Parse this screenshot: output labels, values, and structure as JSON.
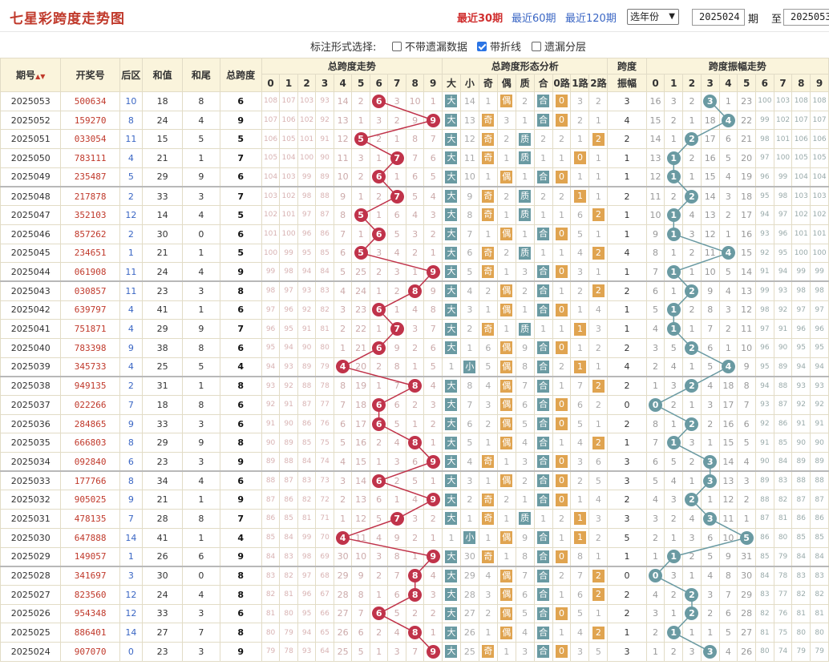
{
  "title": "七星彩跨度走势图",
  "periods": {
    "p30": "最近30期",
    "p60": "最近60期",
    "p120": "最近120期"
  },
  "year_select": "选年份",
  "from_value": "2025024",
  "qi_label": "期",
  "zhi_label": "至",
  "to_value": "2025053",
  "options": {
    "label": "标注形式选择:",
    "items": [
      {
        "label": "不带遗漏数据",
        "checked": false
      },
      {
        "label": "带折线",
        "checked": true
      },
      {
        "label": "遗漏分层",
        "checked": false
      }
    ]
  },
  "headers": {
    "qihao": "期号",
    "kaijiang": "开奖号",
    "houqu": "后区",
    "hezhi": "和值",
    "hewei": "和尾",
    "zongkuadu": "总跨度",
    "trend_group": "总跨度走势",
    "form_group": "总跨度形态分析",
    "amp_group_l1": "跨度",
    "amp_group_l2": "振幅",
    "amptrend_group": "跨度振幅走势",
    "digits": [
      "0",
      "1",
      "2",
      "3",
      "4",
      "5",
      "6",
      "7",
      "8",
      "9"
    ],
    "forms": [
      "大",
      "小",
      "奇",
      "偶",
      "质",
      "合",
      "0路",
      "1路",
      "2路"
    ]
  },
  "rows": [
    {
      "qi": "2025053",
      "num": "500634",
      "hq": "10",
      "hz": "18",
      "hw": "8",
      "kd": "6",
      "tr": [
        "108",
        "107",
        "103",
        "93",
        "14",
        "2",
        "",
        "3",
        "10",
        "1"
      ],
      "fm": [
        "大",
        "14",
        "1",
        "偶",
        "2",
        "合",
        "0",
        "3",
        "2"
      ],
      "zf": "3",
      "at": [
        "16",
        "3",
        "2",
        "",
        "1",
        "23",
        "100",
        "103",
        "108",
        "108"
      ]
    },
    {
      "qi": "2025052",
      "num": "159270",
      "hq": "8",
      "hz": "24",
      "hw": "4",
      "kd": "9",
      "tr": [
        "107",
        "106",
        "102",
        "92",
        "13",
        "1",
        "3",
        "2",
        "9",
        ""
      ],
      "fm": [
        "大",
        "13",
        "奇",
        "3",
        "1",
        "合",
        "0",
        "2",
        "1"
      ],
      "zf": "4",
      "at": [
        "15",
        "2",
        "1",
        "18",
        "",
        "22",
        "99",
        "102",
        "107",
        "107"
      ]
    },
    {
      "qi": "2025051",
      "num": "033054",
      "hq": "11",
      "hz": "15",
      "hw": "5",
      "kd": "5",
      "tr": [
        "106",
        "105",
        "101",
        "91",
        "12",
        "",
        "2",
        "1",
        "8",
        "7"
      ],
      "fm": [
        "大",
        "12",
        "奇",
        "2",
        "质",
        "2",
        "2",
        "1",
        "2"
      ],
      "zf": "2",
      "at": [
        "14",
        "1",
        "",
        "17",
        "6",
        "21",
        "98",
        "101",
        "106",
        "106"
      ]
    },
    {
      "qi": "2025050",
      "num": "783111",
      "hq": "4",
      "hz": "21",
      "hw": "1",
      "kd": "7",
      "tr": [
        "105",
        "104",
        "100",
        "90",
        "11",
        "3",
        "1",
        "",
        "7",
        "6"
      ],
      "fm": [
        "大",
        "11",
        "奇",
        "1",
        "质",
        "1",
        "1",
        "0",
        "1"
      ],
      "zf": "1",
      "at": [
        "13",
        "",
        "2",
        "16",
        "5",
        "20",
        "97",
        "100",
        "105",
        "105"
      ]
    },
    {
      "qi": "2025049",
      "num": "235487",
      "hq": "5",
      "hz": "29",
      "hw": "9",
      "kd": "6",
      "tr": [
        "104",
        "103",
        "99",
        "89",
        "10",
        "2",
        "",
        "1",
        "6",
        "5"
      ],
      "fm": [
        "大",
        "10",
        "1",
        "偶",
        "1",
        "合",
        "0",
        "1",
        "1"
      ],
      "zf": "1",
      "at": [
        "12",
        "",
        "1",
        "15",
        "4",
        "19",
        "96",
        "99",
        "104",
        "104"
      ]
    },
    {
      "qi": "2025048",
      "num": "217878",
      "hq": "2",
      "hz": "33",
      "hw": "3",
      "kd": "7",
      "tr": [
        "103",
        "102",
        "98",
        "88",
        "9",
        "1",
        "2",
        "",
        "5",
        "4"
      ],
      "fm": [
        "大",
        "9",
        "奇",
        "2",
        "质",
        "2",
        "2",
        "1",
        "1"
      ],
      "zf": "2",
      "at": [
        "11",
        "2",
        "",
        "14",
        "3",
        "18",
        "95",
        "98",
        "103",
        "103"
      ]
    },
    {
      "qi": "2025047",
      "num": "352103",
      "hq": "12",
      "hz": "14",
      "hw": "4",
      "kd": "5",
      "tr": [
        "102",
        "101",
        "97",
        "87",
        "8",
        "",
        "1",
        "6",
        "4",
        "3"
      ],
      "fm": [
        "大",
        "8",
        "奇",
        "1",
        "质",
        "1",
        "1",
        "6",
        "2"
      ],
      "zf": "1",
      "at": [
        "10",
        "",
        "4",
        "13",
        "2",
        "17",
        "94",
        "97",
        "102",
        "102"
      ]
    },
    {
      "qi": "2025046",
      "num": "857262",
      "hq": "2",
      "hz": "30",
      "hw": "0",
      "kd": "6",
      "tr": [
        "101",
        "100",
        "96",
        "86",
        "7",
        "1",
        "",
        "5",
        "3",
        "2"
      ],
      "fm": [
        "大",
        "7",
        "1",
        "偶",
        "1",
        "合",
        "0",
        "5",
        "1"
      ],
      "zf": "1",
      "at": [
        "9",
        "",
        "3",
        "12",
        "1",
        "16",
        "93",
        "96",
        "101",
        "101"
      ]
    },
    {
      "qi": "2025045",
      "num": "234651",
      "hq": "1",
      "hz": "21",
      "hw": "1",
      "kd": "5",
      "tr": [
        "100",
        "99",
        "95",
        "85",
        "6",
        "",
        "3",
        "4",
        "2",
        "1"
      ],
      "fm": [
        "大",
        "6",
        "奇",
        "2",
        "质",
        "1",
        "1",
        "4",
        "2"
      ],
      "zf": "4",
      "at": [
        "8",
        "1",
        "2",
        "11",
        "",
        "15",
        "92",
        "95",
        "100",
        "100"
      ]
    },
    {
      "qi": "2025044",
      "num": "061908",
      "hq": "11",
      "hz": "24",
      "hw": "4",
      "kd": "9",
      "tr": [
        "99",
        "98",
        "94",
        "84",
        "5",
        "25",
        "2",
        "3",
        "1",
        ""
      ],
      "fm": [
        "大",
        "5",
        "奇",
        "1",
        "3",
        "合",
        "0",
        "3",
        "1"
      ],
      "zf": "1",
      "at": [
        "7",
        "",
        "1",
        "10",
        "5",
        "14",
        "91",
        "94",
        "99",
        "99"
      ]
    },
    {
      "qi": "2025043",
      "num": "030857",
      "hq": "11",
      "hz": "23",
      "hw": "3",
      "kd": "8",
      "tr": [
        "98",
        "97",
        "93",
        "83",
        "4",
        "24",
        "1",
        "2",
        "",
        "9"
      ],
      "fm": [
        "大",
        "4",
        "2",
        "偶",
        "2",
        "合",
        "1",
        "2",
        "2"
      ],
      "zf": "2",
      "at": [
        "6",
        "1",
        "",
        "9",
        "4",
        "13",
        "99",
        "93",
        "98",
        "98"
      ]
    },
    {
      "qi": "2025042",
      "num": "639797",
      "hq": "4",
      "hz": "41",
      "hw": "1",
      "kd": "6",
      "tr": [
        "97",
        "96",
        "92",
        "82",
        "3",
        "23",
        "",
        "1",
        "4",
        "8"
      ],
      "fm": [
        "大",
        "3",
        "1",
        "偶",
        "1",
        "合",
        "0",
        "1",
        "4"
      ],
      "zf": "1",
      "at": [
        "5",
        "",
        "2",
        "8",
        "3",
        "12",
        "98",
        "92",
        "97",
        "97"
      ]
    },
    {
      "qi": "2025041",
      "num": "751871",
      "hq": "4",
      "hz": "29",
      "hw": "9",
      "kd": "7",
      "tr": [
        "96",
        "95",
        "91",
        "81",
        "2",
        "22",
        "1",
        "",
        "3",
        "7"
      ],
      "fm": [
        "大",
        "2",
        "奇",
        "1",
        "质",
        "1",
        "1",
        "1",
        "3"
      ],
      "zf": "1",
      "at": [
        "4",
        "",
        "1",
        "7",
        "2",
        "11",
        "97",
        "91",
        "96",
        "96"
      ]
    },
    {
      "qi": "2025040",
      "num": "783398",
      "hq": "9",
      "hz": "38",
      "hw": "8",
      "kd": "6",
      "tr": [
        "95",
        "94",
        "90",
        "80",
        "1",
        "21",
        "",
        "9",
        "2",
        "6"
      ],
      "fm": [
        "大",
        "1",
        "6",
        "偶",
        "9",
        "合",
        "0",
        "1",
        "2"
      ],
      "zf": "2",
      "at": [
        "3",
        "5",
        "",
        "6",
        "1",
        "10",
        "96",
        "90",
        "95",
        "95"
      ]
    },
    {
      "qi": "2025039",
      "num": "345733",
      "hq": "4",
      "hz": "25",
      "hw": "5",
      "kd": "4",
      "tr": [
        "94",
        "93",
        "89",
        "79",
        "",
        "20",
        "2",
        "8",
        "1",
        "5"
      ],
      "fm": [
        "1",
        "小",
        "5",
        "偶",
        "8",
        "合",
        "2",
        "1",
        "1"
      ],
      "zf": "4",
      "at": [
        "2",
        "4",
        "1",
        "5",
        "",
        "9",
        "95",
        "89",
        "94",
        "94"
      ]
    },
    {
      "qi": "2025038",
      "num": "949135",
      "hq": "2",
      "hz": "31",
      "hw": "1",
      "kd": "8",
      "tr": [
        "93",
        "92",
        "88",
        "78",
        "8",
        "19",
        "1",
        "7",
        "",
        "4"
      ],
      "fm": [
        "大",
        "8",
        "4",
        "偶",
        "7",
        "合",
        "1",
        "7",
        "2"
      ],
      "zf": "2",
      "at": [
        "1",
        "3",
        "",
        "4",
        "18",
        "8",
        "94",
        "88",
        "93",
        "93"
      ]
    },
    {
      "qi": "2025037",
      "num": "022266",
      "hq": "7",
      "hz": "18",
      "hw": "8",
      "kd": "6",
      "tr": [
        "92",
        "91",
        "87",
        "77",
        "7",
        "18",
        "",
        "6",
        "2",
        "3"
      ],
      "fm": [
        "大",
        "7",
        "3",
        "偶",
        "6",
        "合",
        "0",
        "6",
        "2"
      ],
      "zf": "0",
      "at": [
        "",
        "2",
        "1",
        "3",
        "17",
        "7",
        "93",
        "87",
        "92",
        "92"
      ]
    },
    {
      "qi": "2025036",
      "num": "284865",
      "hq": "9",
      "hz": "33",
      "hw": "3",
      "kd": "6",
      "tr": [
        "91",
        "90",
        "86",
        "76",
        "6",
        "17",
        "",
        "5",
        "1",
        "2"
      ],
      "fm": [
        "大",
        "6",
        "2",
        "偶",
        "5",
        "合",
        "0",
        "5",
        "1"
      ],
      "zf": "2",
      "at": [
        "8",
        "1",
        "",
        "2",
        "16",
        "6",
        "92",
        "86",
        "91",
        "91"
      ]
    },
    {
      "qi": "2025035",
      "num": "666803",
      "hq": "8",
      "hz": "29",
      "hw": "9",
      "kd": "8",
      "tr": [
        "90",
        "89",
        "85",
        "75",
        "5",
        "16",
        "2",
        "4",
        "",
        "1"
      ],
      "fm": [
        "大",
        "5",
        "1",
        "偶",
        "4",
        "合",
        "1",
        "4",
        "2"
      ],
      "zf": "1",
      "at": [
        "7",
        "",
        "3",
        "1",
        "15",
        "5",
        "91",
        "85",
        "90",
        "90"
      ]
    },
    {
      "qi": "2025034",
      "num": "092840",
      "hq": "6",
      "hz": "23",
      "hw": "3",
      "kd": "9",
      "tr": [
        "89",
        "88",
        "84",
        "74",
        "4",
        "15",
        "1",
        "3",
        "6",
        ""
      ],
      "fm": [
        "大",
        "4",
        "奇",
        "1",
        "3",
        "合",
        "0",
        "3",
        "6"
      ],
      "zf": "3",
      "at": [
        "6",
        "5",
        "2",
        "",
        "14",
        "4",
        "90",
        "84",
        "89",
        "89"
      ]
    },
    {
      "qi": "2025033",
      "num": "177766",
      "hq": "8",
      "hz": "34",
      "hw": "4",
      "kd": "6",
      "tr": [
        "88",
        "87",
        "83",
        "73",
        "3",
        "14",
        "",
        "2",
        "5",
        "1"
      ],
      "fm": [
        "大",
        "3",
        "1",
        "偶",
        "2",
        "合",
        "0",
        "2",
        "5"
      ],
      "zf": "3",
      "at": [
        "5",
        "4",
        "1",
        "",
        "13",
        "3",
        "89",
        "83",
        "88",
        "88"
      ]
    },
    {
      "qi": "2025032",
      "num": "905025",
      "hq": "9",
      "hz": "21",
      "hw": "1",
      "kd": "9",
      "tr": [
        "87",
        "86",
        "82",
        "72",
        "2",
        "13",
        "6",
        "1",
        "4",
        ""
      ],
      "fm": [
        "大",
        "2",
        "奇",
        "2",
        "1",
        "合",
        "0",
        "1",
        "4"
      ],
      "zf": "2",
      "at": [
        "4",
        "3",
        "",
        "1",
        "12",
        "2",
        "88",
        "82",
        "87",
        "87"
      ]
    },
    {
      "qi": "2025031",
      "num": "478135",
      "hq": "7",
      "hz": "28",
      "hw": "8",
      "kd": "7",
      "tr": [
        "86",
        "85",
        "81",
        "71",
        "1",
        "12",
        "5",
        "",
        "3",
        "2"
      ],
      "fm": [
        "大",
        "1",
        "奇",
        "1",
        "质",
        "1",
        "2",
        "1",
        "3"
      ],
      "zf": "3",
      "at": [
        "3",
        "2",
        "4",
        "",
        "11",
        "1",
        "87",
        "81",
        "86",
        "86"
      ]
    },
    {
      "qi": "2025030",
      "num": "647888",
      "hq": "14",
      "hz": "41",
      "hw": "1",
      "kd": "4",
      "tr": [
        "85",
        "84",
        "99",
        "70",
        "",
        "11",
        "4",
        "9",
        "2",
        "1"
      ],
      "fm": [
        "1",
        "小",
        "1",
        "偶",
        "9",
        "合",
        "1",
        "1",
        "2"
      ],
      "zf": "5",
      "at": [
        "2",
        "1",
        "3",
        "6",
        "10",
        "",
        "86",
        "80",
        "85",
        "85"
      ]
    },
    {
      "qi": "2025029",
      "num": "149057",
      "hq": "1",
      "hz": "26",
      "hw": "6",
      "kd": "9",
      "tr": [
        "84",
        "83",
        "98",
        "69",
        "30",
        "10",
        "3",
        "8",
        "1",
        ""
      ],
      "fm": [
        "大",
        "30",
        "奇",
        "1",
        "8",
        "合",
        "0",
        "8",
        "1"
      ],
      "zf": "1",
      "at": [
        "1",
        "",
        "2",
        "5",
        "9",
        "31",
        "85",
        "79",
        "84",
        "84"
      ]
    },
    {
      "qi": "2025028",
      "num": "341697",
      "hq": "3",
      "hz": "30",
      "hw": "0",
      "kd": "8",
      "tr": [
        "83",
        "82",
        "97",
        "68",
        "29",
        "9",
        "2",
        "7",
        "",
        "4"
      ],
      "fm": [
        "大",
        "29",
        "4",
        "偶",
        "7",
        "合",
        "2",
        "7",
        "2"
      ],
      "zf": "0",
      "at": [
        "",
        "3",
        "1",
        "4",
        "8",
        "30",
        "84",
        "78",
        "83",
        "83"
      ]
    },
    {
      "qi": "2025027",
      "num": "823560",
      "hq": "12",
      "hz": "24",
      "hw": "4",
      "kd": "8",
      "tr": [
        "82",
        "81",
        "96",
        "67",
        "28",
        "8",
        "1",
        "6",
        "",
        "3"
      ],
      "fm": [
        "大",
        "28",
        "3",
        "偶",
        "6",
        "合",
        "1",
        "6",
        "2"
      ],
      "zf": "2",
      "at": [
        "4",
        "2",
        "",
        "3",
        "7",
        "29",
        "83",
        "77",
        "82",
        "82"
      ]
    },
    {
      "qi": "2025026",
      "num": "954348",
      "hq": "12",
      "hz": "33",
      "hw": "3",
      "kd": "6",
      "tr": [
        "81",
        "80",
        "95",
        "66",
        "27",
        "7",
        "",
        "5",
        "2",
        "2"
      ],
      "fm": [
        "大",
        "27",
        "2",
        "偶",
        "5",
        "合",
        "0",
        "5",
        "1"
      ],
      "zf": "2",
      "at": [
        "3",
        "1",
        "",
        "2",
        "6",
        "28",
        "82",
        "76",
        "81",
        "81"
      ]
    },
    {
      "qi": "2025025",
      "num": "886401",
      "hq": "14",
      "hz": "27",
      "hw": "7",
      "kd": "8",
      "tr": [
        "80",
        "79",
        "94",
        "65",
        "26",
        "6",
        "2",
        "4",
        "",
        "1"
      ],
      "fm": [
        "大",
        "26",
        "1",
        "偶",
        "4",
        "合",
        "1",
        "4",
        "2"
      ],
      "zf": "1",
      "at": [
        "2",
        "",
        "1",
        "1",
        "5",
        "27",
        "81",
        "75",
        "80",
        "80"
      ]
    },
    {
      "qi": "2025024",
      "num": "907070",
      "hq": "0",
      "hz": "23",
      "hw": "3",
      "kd": "9",
      "tr": [
        "79",
        "78",
        "93",
        "64",
        "25",
        "5",
        "1",
        "3",
        "7",
        ""
      ],
      "fm": [
        "大",
        "25",
        "奇",
        "1",
        "3",
        "合",
        "0",
        "3",
        "5"
      ],
      "zf": "3",
      "at": [
        "1",
        "2",
        "3",
        "",
        "4",
        "26",
        "80",
        "74",
        "79",
        "79"
      ]
    }
  ],
  "colors": {
    "accent_red": "#c0334a",
    "accent_teal": "#6a9aa2",
    "tag_orange": "#e0a450",
    "header_bg": "#faf4dc"
  }
}
